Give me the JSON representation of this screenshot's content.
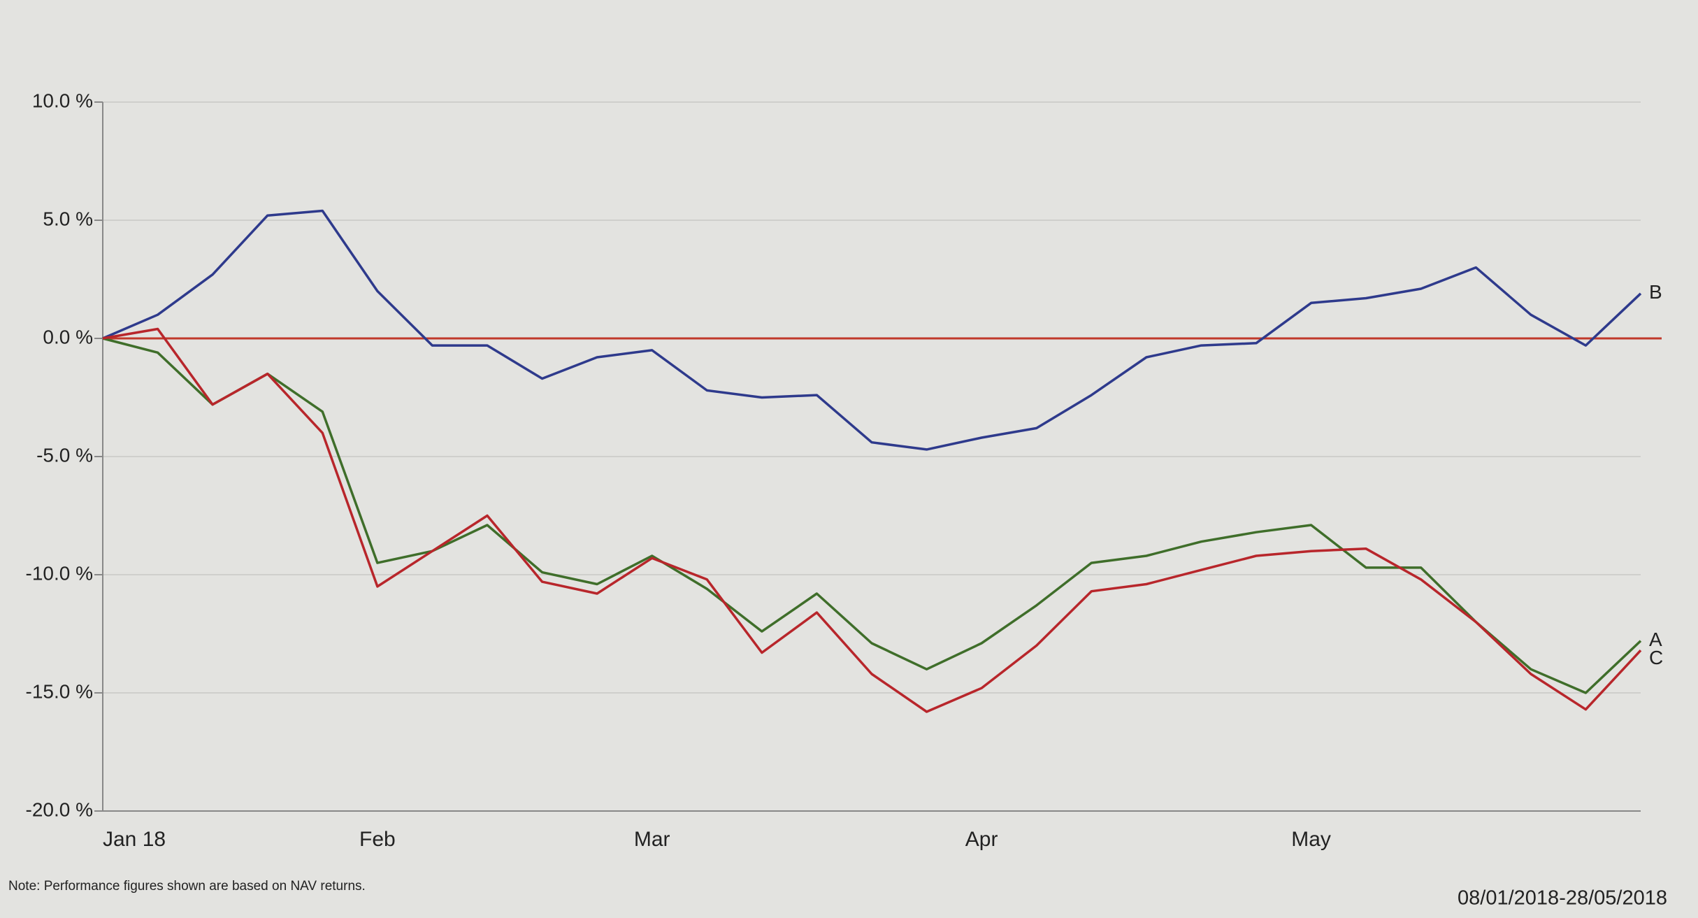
{
  "chart_data": {
    "type": "line",
    "categories": [
      "Jan 18",
      null,
      null,
      null,
      null,
      "Feb",
      null,
      null,
      null,
      null,
      "Mar",
      null,
      null,
      null,
      null,
      null,
      "Apr",
      null,
      null,
      null,
      null,
      null,
      "May",
      null,
      null,
      null,
      null,
      null,
      null
    ],
    "series": [
      {
        "name": "A",
        "color": "#3f6e2a",
        "values": [
          0,
          -0.6,
          -2.8,
          -1.5,
          -3.1,
          -9.5,
          -9.0,
          -7.9,
          -9.9,
          -10.4,
          -9.2,
          -10.6,
          -12.4,
          -10.8,
          -12.9,
          -14.0,
          -12.9,
          -11.3,
          -9.5,
          -9.2,
          -8.6,
          -8.2,
          -7.9,
          -9.7,
          -9.7,
          -12.0,
          -14.0,
          -15.0,
          -12.8
        ]
      },
      {
        "name": "B",
        "color": "#2e3a8c",
        "values": [
          0,
          1.0,
          2.7,
          5.2,
          5.4,
          2.0,
          -0.3,
          -0.3,
          -1.7,
          -0.8,
          -0.5,
          -2.2,
          -2.5,
          -2.4,
          -4.4,
          -4.7,
          -4.2,
          -3.8,
          -2.4,
          -0.8,
          -0.3,
          -0.2,
          1.5,
          1.7,
          2.1,
          3.0,
          1.0,
          -0.3,
          1.9
        ]
      },
      {
        "name": "C",
        "color": "#b8262b",
        "values": [
          0,
          0.4,
          -2.8,
          -1.5,
          -4.0,
          -10.5,
          -9.0,
          -7.5,
          -10.3,
          -10.8,
          -9.3,
          -10.2,
          -13.3,
          -11.6,
          -14.2,
          -15.8,
          -14.8,
          -13.0,
          -10.7,
          -10.4,
          -9.8,
          -9.2,
          -9.0,
          -8.9,
          -10.2,
          -12.0,
          -14.2,
          -15.7,
          -13.2
        ]
      }
    ],
    "reference_line": {
      "value": 0,
      "color": "#c0392b"
    },
    "ylim": [
      -20,
      10
    ],
    "yticks": [
      {
        "value": 10,
        "label": "10.0 %"
      },
      {
        "value": 5,
        "label": "5.0 %"
      },
      {
        "value": 0,
        "label": "0.0 %"
      },
      {
        "value": -5,
        "label": "-5.0 %"
      },
      {
        "value": -10,
        "label": "-10.0 %"
      },
      {
        "value": -15,
        "label": "-15.0 %"
      },
      {
        "value": -20,
        "label": "-20.0 %"
      }
    ],
    "grid": true,
    "note": "Note: Performance figures shown are based on NAV returns.",
    "date_range": "08/01/2018-28/05/2018"
  }
}
